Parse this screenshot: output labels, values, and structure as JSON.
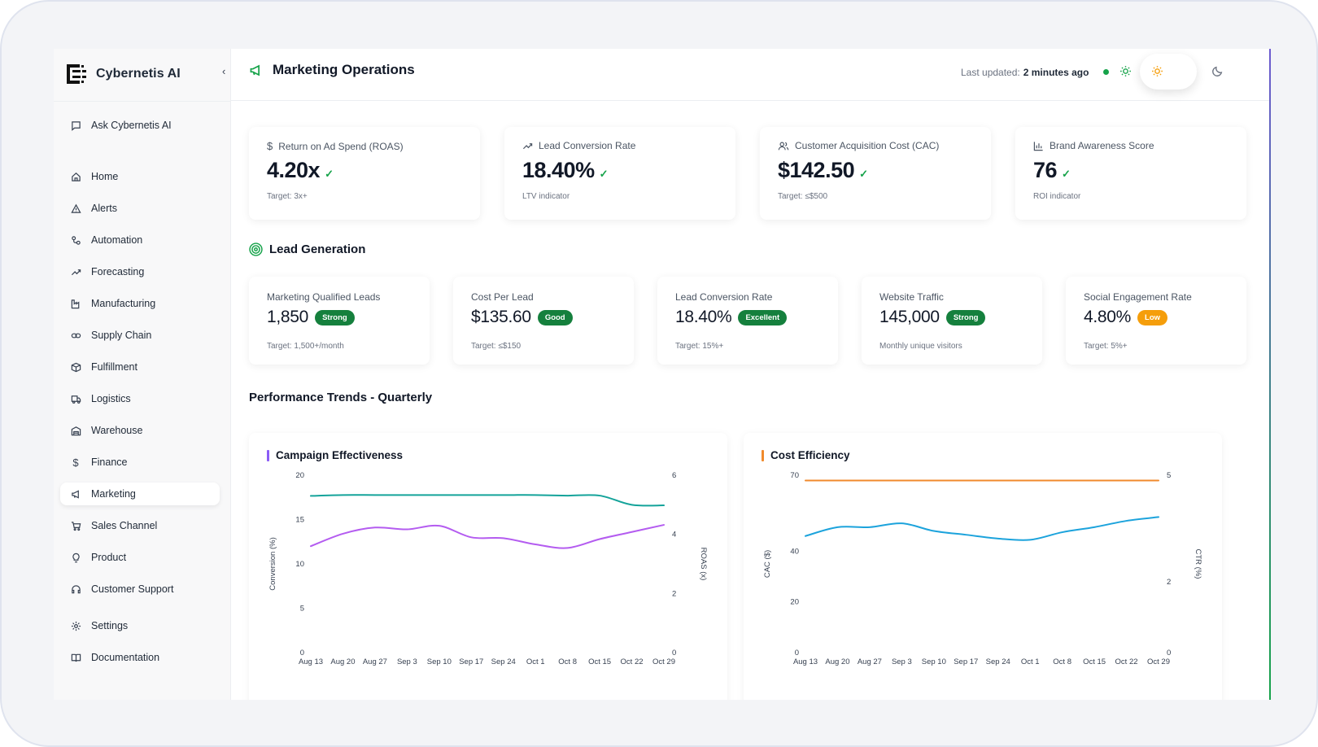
{
  "app": {
    "name": "Cybernetis AI"
  },
  "sidebar": {
    "ask": "Ask Cybernetis AI",
    "items": [
      {
        "label": "Home"
      },
      {
        "label": "Alerts"
      },
      {
        "label": "Automation"
      },
      {
        "label": "Forecasting"
      },
      {
        "label": "Manufacturing"
      },
      {
        "label": "Supply Chain"
      },
      {
        "label": "Fulfillment"
      },
      {
        "label": "Logistics"
      },
      {
        "label": "Warehouse"
      },
      {
        "label": "Finance"
      },
      {
        "label": "Marketing"
      },
      {
        "label": "Sales Channel"
      },
      {
        "label": "Product"
      },
      {
        "label": "Customer Support"
      }
    ],
    "settings": "Settings",
    "docs": "Documentation"
  },
  "header": {
    "title": "Marketing Operations",
    "updated_label": "Last updated:",
    "updated_value": "2 minutes ago"
  },
  "kpis": [
    {
      "label": "Return on Ad Spend (ROAS)",
      "value": "4.20x",
      "sub": "Target: 3x+"
    },
    {
      "label": "Lead Conversion Rate",
      "value": "18.40%",
      "sub": "LTV indicator"
    },
    {
      "label": "Customer Acquisition Cost (CAC)",
      "value": "$142.50",
      "sub": "Target: ≤$500"
    },
    {
      "label": "Brand Awareness Score",
      "value": "76",
      "sub": "ROI indicator"
    }
  ],
  "lead_generation": {
    "title": "Lead Generation",
    "cards": [
      {
        "label": "Marketing Qualified Leads",
        "value": "1,850",
        "badge": "Strong",
        "sub": "Target: 1,500+/month"
      },
      {
        "label": "Cost Per Lead",
        "value": "$135.60",
        "badge": "Good",
        "sub": "Target: ≤$150"
      },
      {
        "label": "Lead Conversion Rate",
        "value": "18.40%",
        "badge": "Excellent",
        "sub": "Target: 15%+"
      },
      {
        "label": "Website Traffic",
        "value": "145,000",
        "badge": "Strong",
        "sub": "Monthly unique visitors"
      },
      {
        "label": "Social Engagement Rate",
        "value": "4.80%",
        "badge": "Low",
        "sub": "Target: 5%+"
      }
    ]
  },
  "trends": {
    "title": "Performance Trends - Quarterly"
  },
  "colors": {
    "accent_green": "#16a34a",
    "badge_green": "#15803d",
    "badge_amber": "#f59e0b",
    "teal": "#14a39a",
    "purple": "#b45cf0",
    "blue": "#1ca3dc",
    "orange": "#f08a2c"
  },
  "chart_data": [
    {
      "type": "line",
      "title": "Campaign Effectiveness",
      "categories": [
        "Aug 13",
        "Aug 20",
        "Aug 27",
        "Sep 3",
        "Sep 10",
        "Sep 17",
        "Sep 24",
        "Oct 1",
        "Oct 8",
        "Oct 15",
        "Oct 22",
        "Oct 29"
      ],
      "ylabel": "Conversion (%)",
      "y2label": "ROAS (x)",
      "ylim": [
        0,
        20
      ],
      "y2lim": [
        0,
        6
      ],
      "yticks": [
        0,
        5,
        10,
        15,
        20
      ],
      "y2ticks": [
        0,
        2,
        4,
        6
      ],
      "series": [
        {
          "name": "Conversion (%)",
          "axis": "left",
          "color": "#b45cf0",
          "values": [
            12.0,
            13.4,
            14.1,
            13.9,
            14.3,
            13.0,
            12.9,
            12.2,
            11.8,
            12.8,
            13.6,
            14.4
          ]
        },
        {
          "name": "ROAS (x)",
          "axis": "right",
          "color": "#14a39a",
          "values": [
            5.3,
            5.33,
            5.33,
            5.33,
            5.33,
            5.33,
            5.33,
            5.33,
            5.31,
            5.31,
            5.0,
            4.98
          ]
        }
      ]
    },
    {
      "type": "line",
      "title": "Cost Efficiency",
      "categories": [
        "Aug 13",
        "Aug 20",
        "Aug 27",
        "Sep 3",
        "Sep 10",
        "Sep 17",
        "Sep 24",
        "Oct 1",
        "Oct 8",
        "Oct 15",
        "Oct 22",
        "Oct 29"
      ],
      "ylabel": "CAC ($)",
      "y2label": "CTR (%)",
      "ylim": [
        0,
        70
      ],
      "y2lim": [
        0,
        5
      ],
      "yticks": [
        0,
        20,
        40,
        70
      ],
      "y2ticks": [
        0,
        2,
        5
      ],
      "series": [
        {
          "name": "CAC ($)",
          "axis": "left",
          "color": "#1ca3dc",
          "values": [
            46,
            49.5,
            49.5,
            51,
            48,
            46.5,
            45,
            44.5,
            47.5,
            49.5,
            52,
            53.5
          ]
        },
        {
          "name": "CTR (%)",
          "axis": "right",
          "color": "#f08a2c",
          "values": [
            4.85,
            4.85,
            4.85,
            4.85,
            4.85,
            4.85,
            4.85,
            4.85,
            4.85,
            4.85,
            4.85,
            4.85
          ]
        }
      ]
    }
  ]
}
